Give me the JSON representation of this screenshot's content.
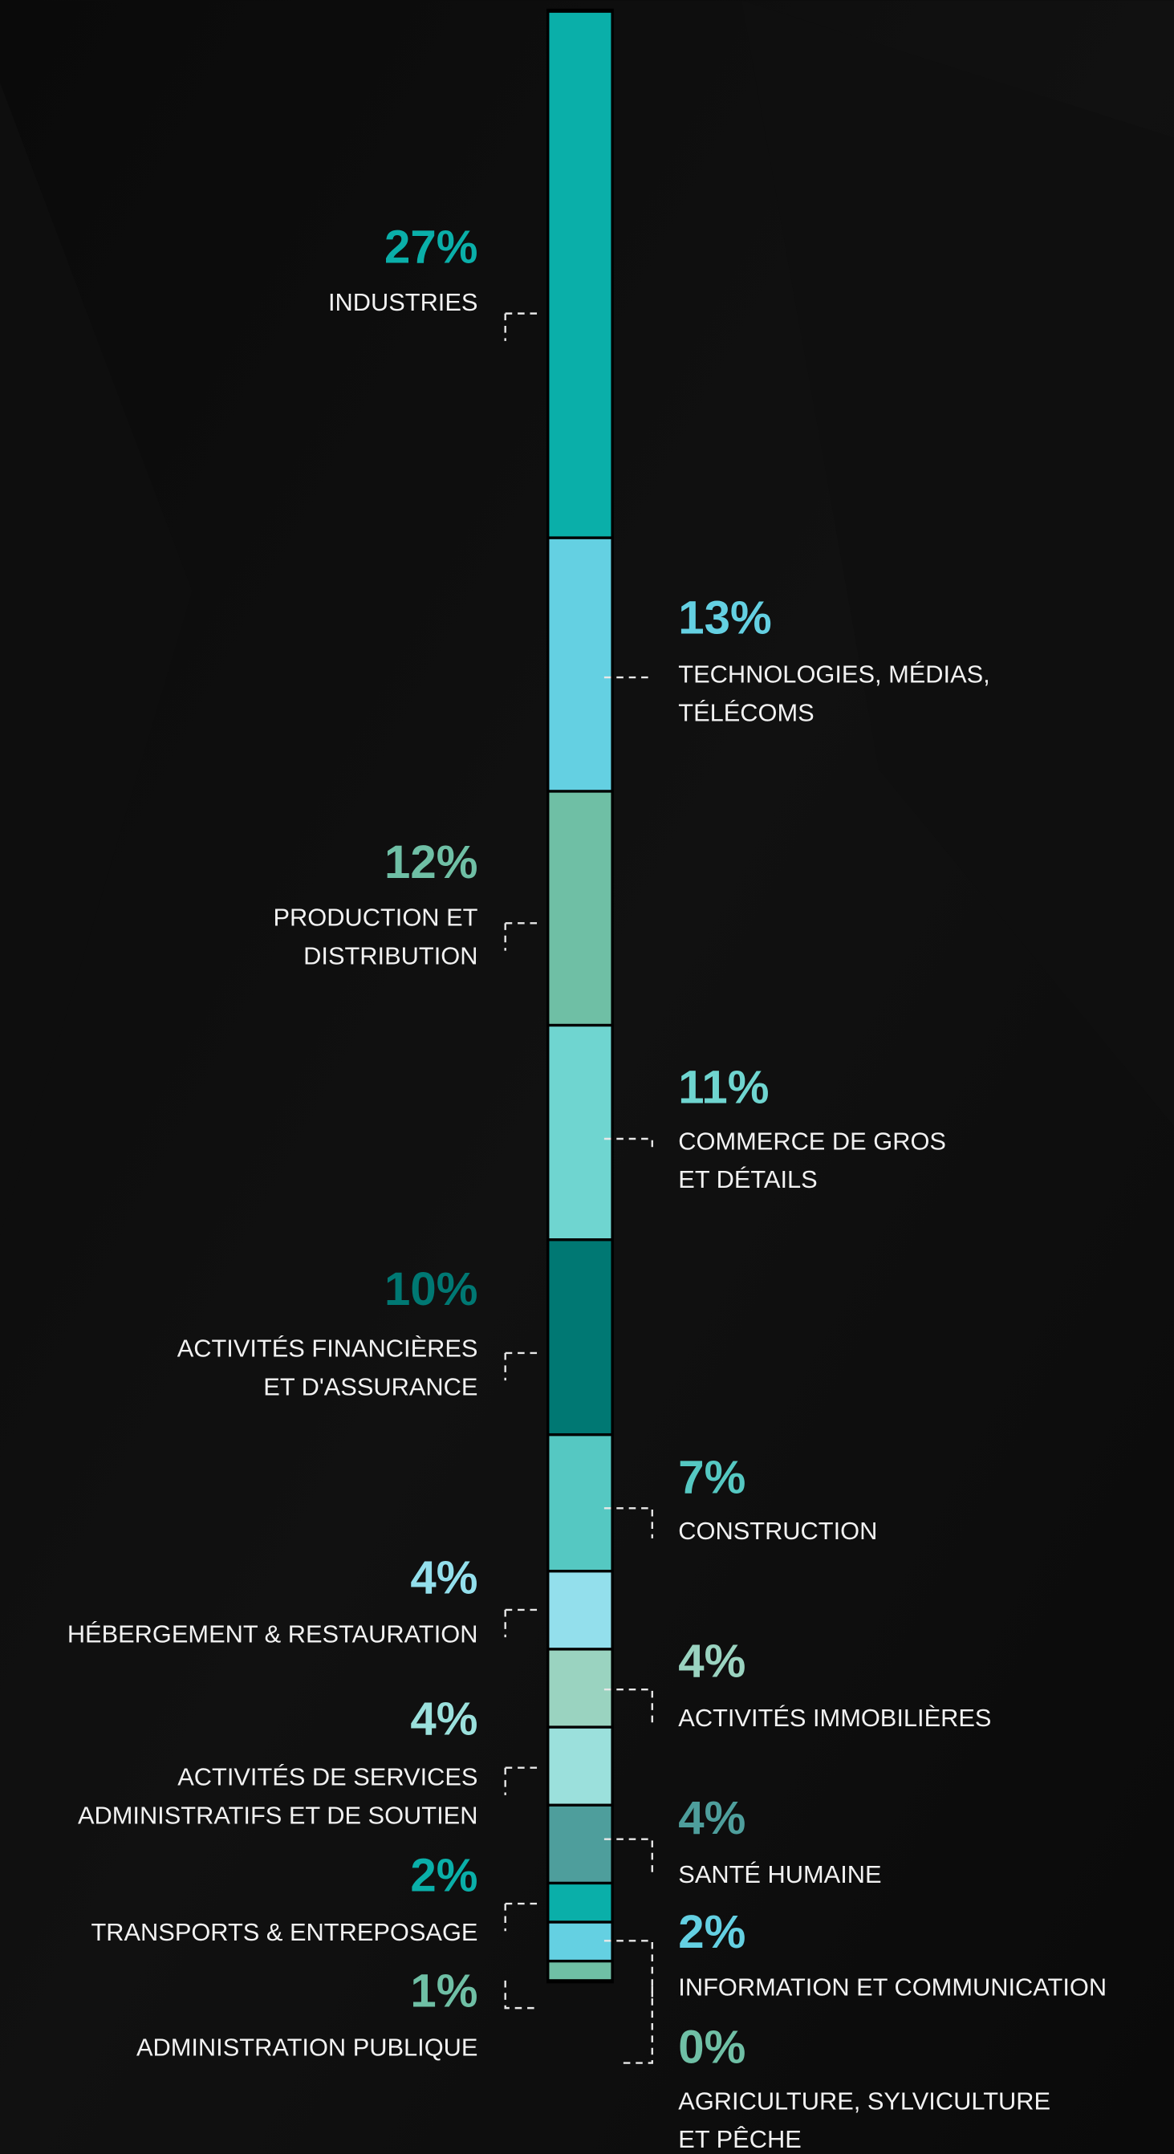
{
  "chart_data": {
    "type": "stacked-bar",
    "categories": [
      [
        "INDUSTRIES"
      ],
      [
        "TECHNOLOGIES, MÉDIAS,",
        "TÉLÉCOMS"
      ],
      [
        "PRODUCTION ET",
        "DISTRIBUTION"
      ],
      [
        "COMMERCE DE GROS",
        "ET DÉTAILS"
      ],
      [
        "ACTIVITÉS FINANCIÈRES",
        "ET D'ASSURANCE"
      ],
      [
        "CONSTRUCTION"
      ],
      [
        "HÉBERGEMENT & RESTAURATION"
      ],
      [
        "ACTIVITÉS IMMOBILIÈRES"
      ],
      [
        "ACTIVITÉS DE SERVICES",
        "ADMINISTRATIFS ET DE SOUTIEN"
      ],
      [
        "SANTÉ HUMAINE"
      ],
      [
        "TRANSPORTS & ENTREPOSAGE"
      ],
      [
        "INFORMATION ET COMMUNICATION"
      ],
      [
        "ADMINISTRATION PUBLIQUE"
      ],
      [
        "AGRICULTURE, SYLVICULTURE",
        "ET PÊCHE"
      ]
    ],
    "values": [
      27,
      13,
      12,
      11,
      10,
      7,
      4,
      4,
      4,
      4,
      2,
      2,
      1,
      0
    ],
    "value_labels": [
      "27%",
      "13%",
      "12%",
      "11%",
      "10%",
      "7%",
      "4%",
      "4%",
      "4%",
      "4%",
      "2%",
      "2%",
      "1%",
      "0%"
    ],
    "colors": [
      "#0aafa9",
      "#64d0e2",
      "#6fbfa5",
      "#6fd5d0",
      "#007873",
      "#55c8c2",
      "#93dfec",
      "#9ad3c0",
      "#9be0dc",
      "#4e9e9c",
      "#0aafa9",
      "#64d0e2",
      "#6fbfa5",
      "#6fbfa5"
    ]
  }
}
